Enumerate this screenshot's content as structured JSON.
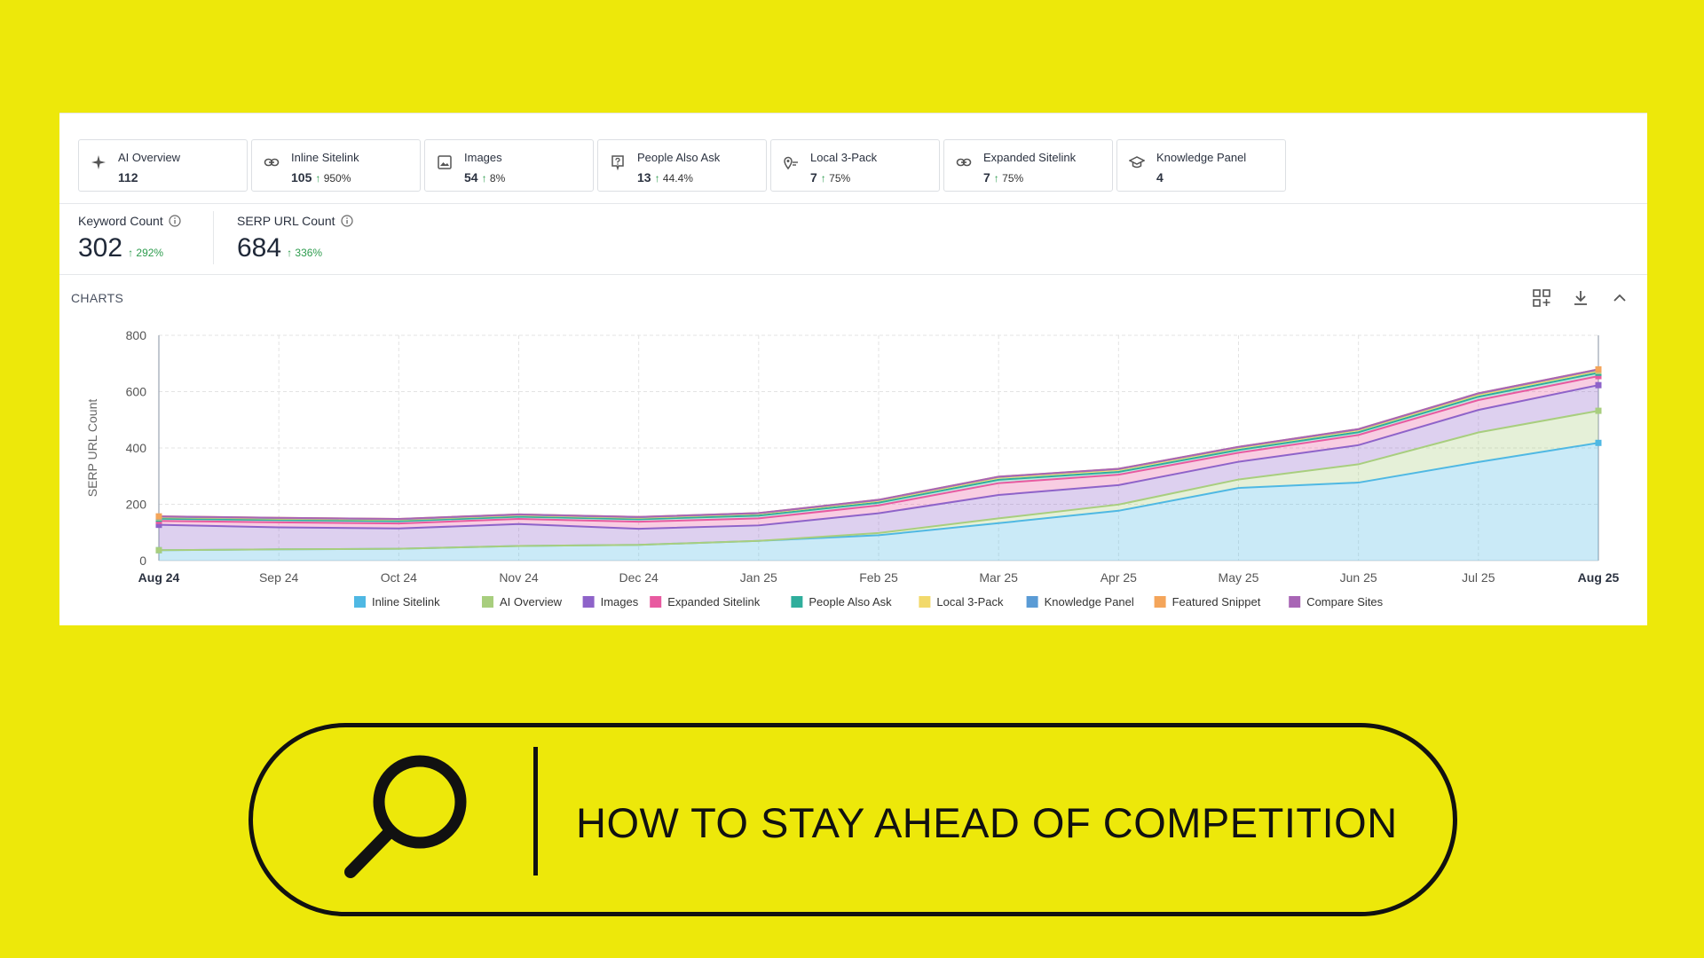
{
  "pills": [
    {
      "name": "AI Overview",
      "count": "112",
      "change": "",
      "icon": "sparkle-icon"
    },
    {
      "name": "Inline Sitelink",
      "count": "105",
      "change": "950%",
      "icon": "link-icon"
    },
    {
      "name": "Images",
      "count": "54",
      "change": "8%",
      "icon": "image-icon"
    },
    {
      "name": "People Also Ask",
      "count": "13",
      "change": "44.4%",
      "icon": "question-icon"
    },
    {
      "name": "Local 3-Pack",
      "count": "7",
      "change": "75%",
      "icon": "map-pin-icon"
    },
    {
      "name": "Expanded Sitelink",
      "count": "7",
      "change": "75%",
      "icon": "link-icon"
    },
    {
      "name": "Knowledge Panel",
      "count": "4",
      "change": "",
      "icon": "graduation-cap-icon"
    }
  ],
  "metrics": {
    "keyword": {
      "label": "Keyword Count",
      "value": "302",
      "change": "292%"
    },
    "serp": {
      "label": "SERP URL Count",
      "value": "684",
      "change": "336%"
    }
  },
  "charts_title": "CHARTS",
  "headline": "HOW TO STAY AHEAD OF COMPETITION",
  "colors": {
    "background": "#EDE80A",
    "inline_sitelink": "#4FB8E3",
    "ai_overview": "#A8CE7E",
    "images": "#8E63C9",
    "expanded_sitelink": "#E85AA0",
    "people_also_ask": "#2FAE9C",
    "local_3_pack": "#F2D96B",
    "knowledge_panel": "#5A9BD5",
    "featured_snippet": "#F4A55A",
    "compare_sites": "#A865B5",
    "positive_change": "#2e9c4e"
  },
  "chart_data": {
    "type": "area",
    "ylabel": "SERP URL Count",
    "xlabel": "",
    "ylim": [
      0,
      800
    ],
    "yticks": [
      0,
      200,
      400,
      600,
      800
    ],
    "categories": [
      "Aug 24",
      "Sep 24",
      "Oct 24",
      "Nov 24",
      "Dec 24",
      "Jan 25",
      "Feb 25",
      "Mar 25",
      "Apr 25",
      "May 25",
      "Jun 25",
      "Jul 25",
      "Aug 25"
    ],
    "bold_categories": [
      "Aug 24",
      "Aug 25"
    ],
    "stacked": true,
    "series": [
      {
        "name": "Inline Sitelink",
        "values": [
          37,
          40,
          42,
          52,
          56,
          70,
          90,
          133,
          177,
          258,
          277,
          350,
          418
        ]
      },
      {
        "name": "AI Overview",
        "values": [
          0,
          0,
          0,
          0,
          0,
          0,
          8,
          17,
          22,
          30,
          65,
          105,
          114
        ]
      },
      {
        "name": "Images",
        "values": [
          90,
          78,
          72,
          78,
          57,
          55,
          70,
          83,
          69,
          63,
          68,
          80,
          91
        ]
      },
      {
        "name": "Expanded Sitelink",
        "values": [
          14,
          18,
          18,
          18,
          25,
          25,
          28,
          42,
          37,
          32,
          36,
          35,
          32
        ]
      },
      {
        "name": "People Also Ask",
        "values": [
          8,
          8,
          8,
          8,
          9,
          10,
          10,
          12,
          10,
          10,
          10,
          12,
          12
        ]
      },
      {
        "name": "Local 3-Pack",
        "values": [
          5,
          5,
          5,
          5,
          5,
          6,
          6,
          7,
          7,
          7,
          7,
          7,
          7
        ]
      },
      {
        "name": "Knowledge Panel",
        "values": [
          2,
          2,
          2,
          2,
          2,
          2,
          3,
          3,
          3,
          3,
          3,
          4,
          4
        ]
      },
      {
        "name": "Featured Snippet",
        "values": [
          1,
          1,
          1,
          1,
          1,
          1,
          1,
          1,
          1,
          1,
          1,
          1,
          1
        ]
      },
      {
        "name": "Compare Sites",
        "values": [
          0,
          0,
          0,
          0,
          0,
          0,
          0,
          0,
          0,
          0,
          0,
          0,
          0
        ]
      }
    ]
  }
}
